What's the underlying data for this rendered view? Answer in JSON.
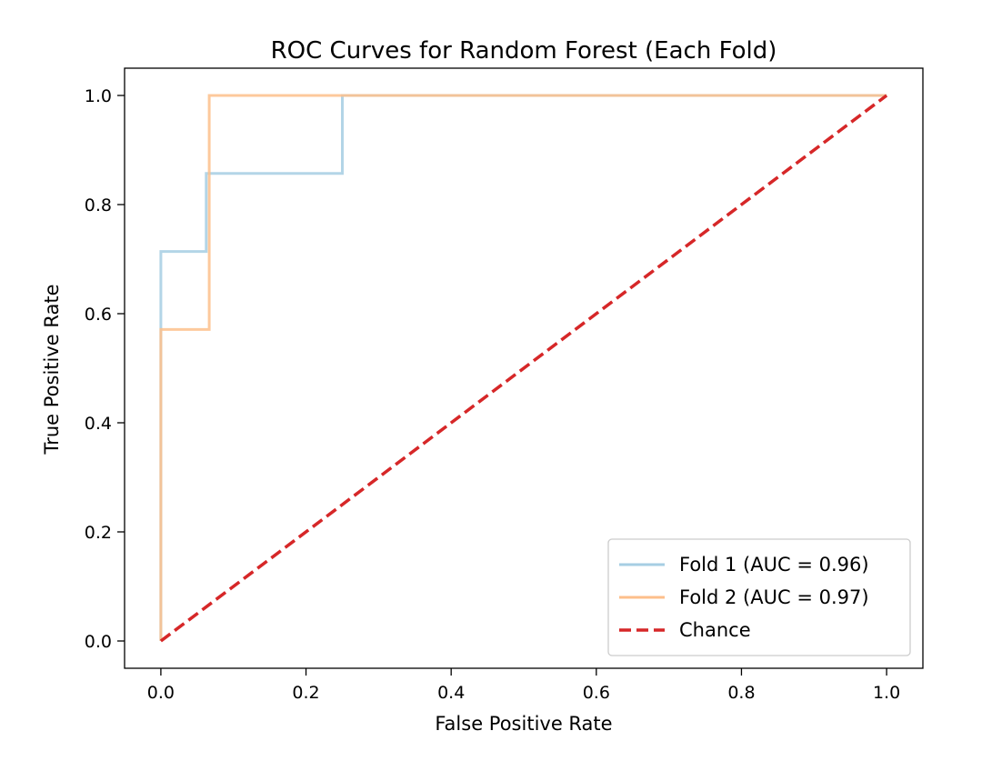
{
  "chart_data": {
    "type": "line",
    "title": "ROC Curves for Random Forest (Each Fold)",
    "xlabel": "False Positive Rate",
    "ylabel": "True Positive Rate",
    "xlim": [
      -0.05,
      1.05
    ],
    "ylim": [
      -0.05,
      1.05
    ],
    "xticks": [
      "0.0",
      "0.2",
      "0.4",
      "0.6",
      "0.8",
      "1.0"
    ],
    "yticks": [
      "0.0",
      "0.2",
      "0.4",
      "0.6",
      "0.8",
      "1.0"
    ],
    "grid": false,
    "legend_position": "lower-right",
    "series": [
      {
        "name": "Fold 1 (AUC = 0.96)",
        "color": "#a6cee3",
        "style": "solid",
        "x": [
          0.0,
          0.0,
          0.0,
          0.0625,
          0.0625,
          0.25,
          0.25,
          1.0
        ],
        "y": [
          0.0,
          0.571,
          0.714,
          0.714,
          0.857,
          0.857,
          1.0,
          1.0
        ]
      },
      {
        "name": "Fold 2 (AUC = 0.97)",
        "color": "#fdbf8b",
        "style": "solid",
        "x": [
          0.0,
          0.0,
          0.0667,
          0.0667,
          1.0
        ],
        "y": [
          0.0,
          0.571,
          0.571,
          1.0,
          1.0
        ]
      },
      {
        "name": "Chance",
        "color": "#d62728",
        "style": "dashed",
        "x": [
          0.0,
          1.0
        ],
        "y": [
          0.0,
          1.0
        ]
      }
    ]
  }
}
